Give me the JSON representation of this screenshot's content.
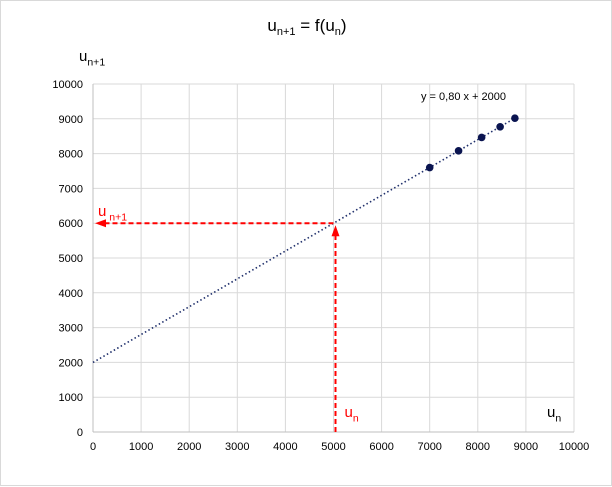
{
  "chart_data": {
    "type": "scatter",
    "title": {
      "base": "u",
      "sub1": "n+1",
      "mid": " = f(u",
      "sub2": "n",
      "end": ")"
    },
    "xlabel": {
      "base": "u",
      "sub": "n"
    },
    "ylabel": {
      "base": "u",
      "sub": "n+1"
    },
    "xlim": [
      0,
      10000
    ],
    "ylim": [
      0,
      10000
    ],
    "xticks": [
      0,
      1000,
      2000,
      3000,
      4000,
      5000,
      6000,
      7000,
      8000,
      9000,
      10000
    ],
    "yticks": [
      0,
      1000,
      2000,
      3000,
      4000,
      5000,
      6000,
      7000,
      8000,
      9000,
      10000
    ],
    "grid": true,
    "points": [
      {
        "x": 7000,
        "y": 7600
      },
      {
        "x": 7600,
        "y": 8080
      },
      {
        "x": 8080,
        "y": 8464
      },
      {
        "x": 8464,
        "y": 8771
      },
      {
        "x": 8771,
        "y": 9017
      }
    ],
    "trendline": {
      "slope": 0.8,
      "intercept": 2000,
      "label": "y = 0,80 x + 2000"
    },
    "annotation": {
      "x_value": 5000,
      "y_value": 6000,
      "x_label": {
        "base": "u",
        "sub": "n"
      },
      "y_label": {
        "base": "u",
        "sub": " n+1"
      }
    },
    "colors": {
      "points": "#0a1450",
      "trend": "#1f2f6b",
      "annotation": "#ff0000",
      "grid": "#d9d9d9"
    }
  }
}
